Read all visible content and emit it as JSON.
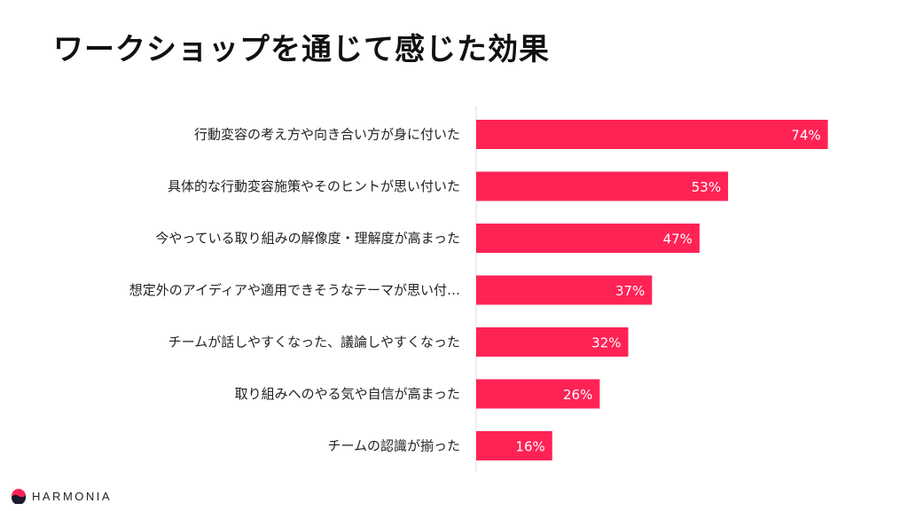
{
  "title": "ワークショップを通じて感じた効果",
  "brand": {
    "name": "HARMONIA",
    "icon": "harmonia-logo-icon"
  },
  "colors": {
    "bar": "#ff2255",
    "axis": "#dddddd",
    "text": "#222222"
  },
  "chart_data": {
    "type": "bar",
    "orientation": "horizontal",
    "unit": "%",
    "categories": [
      "行動変容の考え方や向き合い方が身に付いた",
      "具体的な行動変容施策やそのヒントが思い付いた",
      "今やっている取り組みの解像度・理解度が高まった",
      "想定外のアイディアや適用できそうなテーマが思い付…",
      "チームが話しやすくなった、議論しやすくなった",
      "取り組みへのやる気や自信が高まった",
      "チームの認識が揃った"
    ],
    "values": [
      74,
      53,
      47,
      37,
      32,
      26,
      16
    ],
    "value_labels": [
      "74%",
      "53%",
      "47%",
      "37%",
      "32%",
      "26%",
      "16%"
    ],
    "xlim": [
      0,
      100
    ]
  }
}
